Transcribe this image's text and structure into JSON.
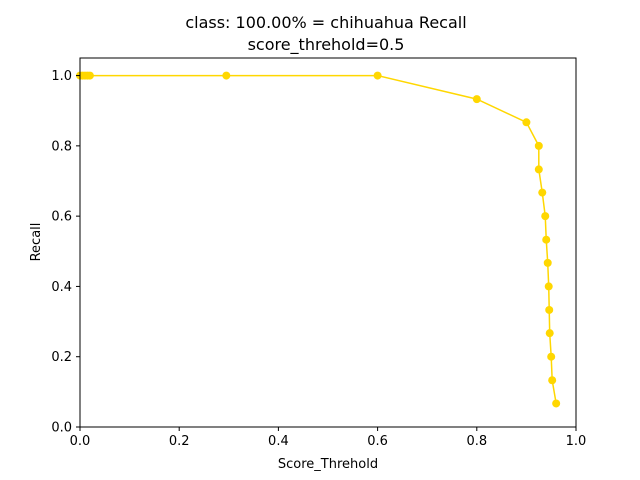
{
  "colors": {
    "series": "#ffd700",
    "axis": "#000000",
    "background": "#ffffff"
  },
  "chart_data": {
    "type": "line",
    "title": "class: 100.00% = chihuahua Recall",
    "subtitle": "score_threhold=0.5",
    "xlabel": "Score_Threhold",
    "ylabel": "Recall",
    "xlim": [
      0,
      1
    ],
    "ylim": [
      0,
      1.05
    ],
    "xticks": [
      0.0,
      0.2,
      0.4,
      0.6,
      0.8,
      1.0
    ],
    "xtick_labels": [
      "0.0",
      "0.2",
      "0.4",
      "0.6",
      "0.8",
      "1.0"
    ],
    "yticks": [
      0.0,
      0.2,
      0.4,
      0.6,
      0.8,
      1.0
    ],
    "ytick_labels": [
      "0.0",
      "0.2",
      "0.4",
      "0.6",
      "0.8",
      "1.0"
    ],
    "grid": false,
    "legend": "none",
    "marker": "circle",
    "series": [
      {
        "x": [
          0.0,
          0.005,
          0.01,
          0.015,
          0.02,
          0.295,
          0.6,
          0.8,
          0.9,
          0.925,
          0.925,
          0.932,
          0.938,
          0.94,
          0.943,
          0.945,
          0.946,
          0.947,
          0.95,
          0.952,
          0.96
        ],
        "y": [
          1.0,
          1.0,
          1.0,
          1.0,
          1.0,
          1.0,
          1.0,
          0.933,
          0.867,
          0.8,
          0.733,
          0.667,
          0.6,
          0.533,
          0.467,
          0.4,
          0.333,
          0.267,
          0.2,
          0.133,
          0.067
        ]
      }
    ]
  }
}
